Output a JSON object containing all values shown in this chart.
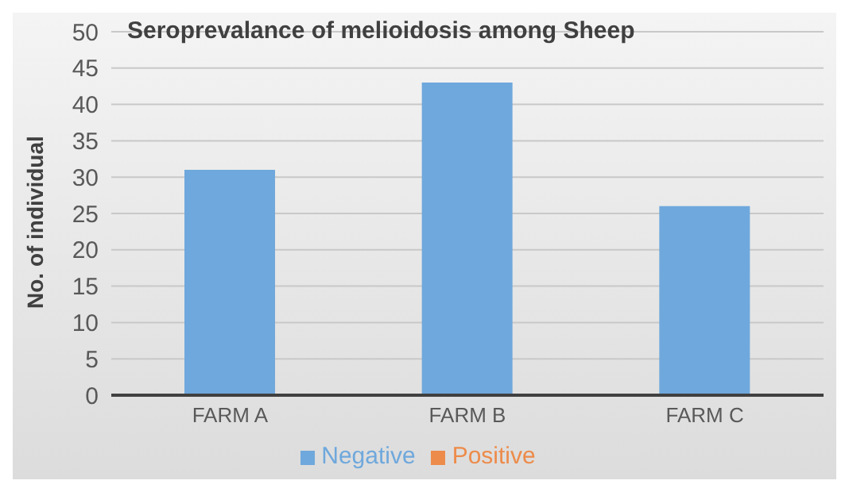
{
  "chart_data": {
    "type": "bar",
    "title": "Seroprevalance of melioidosis among Sheep",
    "ylabel": "No. of individual",
    "categories": [
      "FARM A",
      "FARM B",
      "FARM C"
    ],
    "series": [
      {
        "name": "Negative",
        "color": "#6fa8dc",
        "values": [
          31,
          43,
          26
        ]
      },
      {
        "name": "Positive",
        "color": "#ed8b4a",
        "values": [
          null,
          null,
          null
        ]
      }
    ],
    "ylim": [
      0,
      50
    ],
    "yticks": [
      0,
      5,
      10,
      15,
      20,
      25,
      30,
      35,
      40,
      45,
      50
    ],
    "grid": "y",
    "legend": "bottom"
  }
}
